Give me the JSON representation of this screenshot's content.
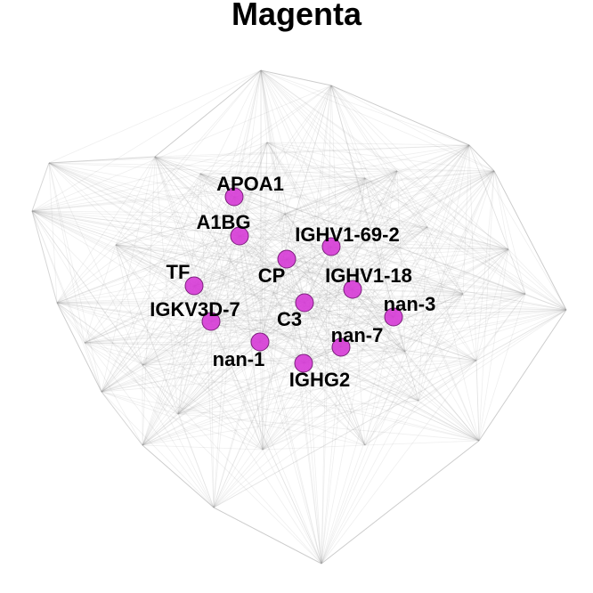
{
  "title": "Magenta",
  "node_color": "#d63ad6",
  "node_stroke": "#7a1f7a",
  "edge_color": "#9a9a9a",
  "labeled_nodes": [
    {
      "id": "APOA1",
      "label": "APOA1"
    },
    {
      "id": "A1BG",
      "label": "A1BG"
    },
    {
      "id": "IGHV1-69-2",
      "label": "IGHV1-69-2"
    },
    {
      "id": "CP",
      "label": "CP"
    },
    {
      "id": "IGHV1-18",
      "label": "IGHV1-18"
    },
    {
      "id": "TF",
      "label": "TF"
    },
    {
      "id": "IGKV3D-7",
      "label": "IGKV3D-7"
    },
    {
      "id": "C3",
      "label": "C3"
    },
    {
      "id": "nan-3",
      "label": "nan-3"
    },
    {
      "id": "nan-7",
      "label": "nan-7"
    },
    {
      "id": "nan-1",
      "label": "nan-1"
    },
    {
      "id": "IGHG2",
      "label": "IGHG2"
    }
  ]
}
